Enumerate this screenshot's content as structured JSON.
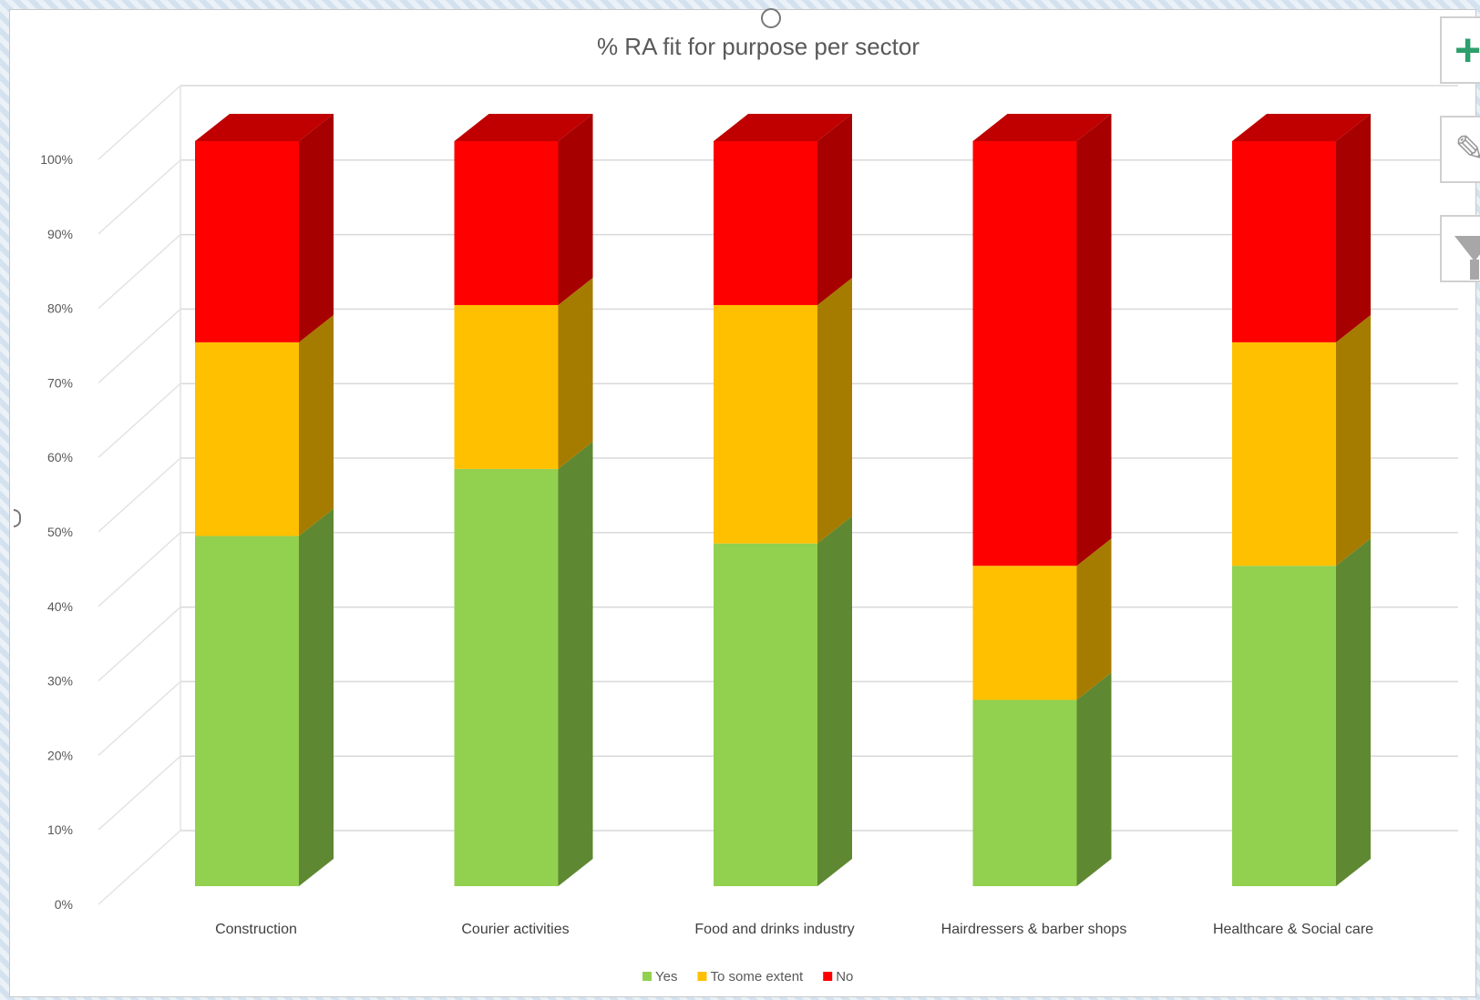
{
  "chart_data": {
    "type": "bar",
    "stacked": true,
    "percent_stacked": true,
    "three_d": true,
    "title": "% RA fit for purpose per sector",
    "categories": [
      "Construction",
      "Courier activities",
      "Food and drinks industry",
      "Hairdressers & barber shops",
      "Healthcare & Social care"
    ],
    "series": [
      {
        "name": "Yes",
        "color": "#92d050",
        "side_color": "#5e8832",
        "values": [
          47,
          56,
          46,
          25,
          43
        ]
      },
      {
        "name": "To some extent",
        "color": "#ffc000",
        "side_color": "#a67c00",
        "values": [
          26,
          22,
          32,
          18,
          30
        ]
      },
      {
        "name": "No",
        "color": "#ff0000",
        "side_color": "#a60000",
        "top_color": "#c00000",
        "values": [
          27,
          22,
          22,
          57,
          27
        ]
      }
    ],
    "y_ticks": [
      "0%",
      "10%",
      "20%",
      "30%",
      "40%",
      "50%",
      "60%",
      "70%",
      "80%",
      "90%",
      "100%"
    ],
    "ylim": [
      0,
      100
    ],
    "grid": true,
    "legend_position": "bottom"
  },
  "toolbar": {
    "elements_icon": "plus-icon",
    "styles_icon": "paintbrush-icon",
    "filters_icon": "funnel-icon"
  }
}
